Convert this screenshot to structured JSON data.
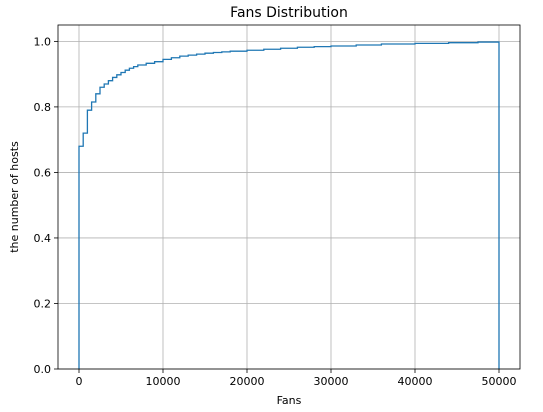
{
  "chart_data": {
    "type": "line",
    "title": "Fans Distribution",
    "xlabel": "Fans",
    "ylabel": "the number of hosts",
    "xlim": [
      -2500,
      52500
    ],
    "ylim": [
      0.0,
      1.05
    ],
    "grid": true,
    "style": "step",
    "line_color": "#1f77b4",
    "x_ticks": [
      0,
      10000,
      20000,
      30000,
      40000,
      50000
    ],
    "x_tick_labels": [
      "0",
      "10000",
      "20000",
      "30000",
      "40000",
      "50000"
    ],
    "y_ticks": [
      0.0,
      0.2,
      0.4,
      0.6,
      0.8,
      1.0
    ],
    "y_tick_labels": [
      "0.0",
      "0.2",
      "0.4",
      "0.6",
      "0.8",
      "1.0"
    ],
    "series": [
      {
        "x": [
          0,
          0,
          500,
          1000,
          1500,
          2000,
          2500,
          3000,
          3500,
          4000,
          4500,
          5000,
          5500,
          6000,
          6500,
          7000,
          8000,
          9000,
          10000,
          11000,
          12000,
          13000,
          14000,
          15000,
          16000,
          17000,
          18000,
          20000,
          22000,
          24000,
          26000,
          28000,
          30000,
          33000,
          36000,
          40000,
          44000,
          47500,
          50000,
          50000
        ],
        "y": [
          0.0,
          0.68,
          0.72,
          0.79,
          0.815,
          0.84,
          0.86,
          0.87,
          0.88,
          0.89,
          0.898,
          0.905,
          0.912,
          0.918,
          0.923,
          0.928,
          0.933,
          0.938,
          0.945,
          0.95,
          0.955,
          0.958,
          0.961,
          0.964,
          0.966,
          0.968,
          0.97,
          0.973,
          0.976,
          0.979,
          0.982,
          0.984,
          0.986,
          0.989,
          0.992,
          0.994,
          0.996,
          0.998,
          1.0,
          0.0
        ]
      }
    ]
  }
}
